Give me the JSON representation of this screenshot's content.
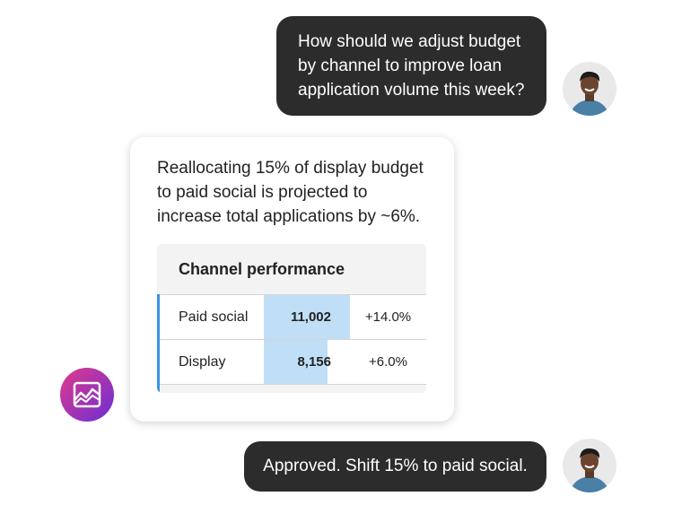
{
  "conversation": {
    "user_message_1": {
      "lines": [
        "How should we adjust budget",
        "by channel to improve loan",
        "application volume this week?"
      ]
    },
    "assistant_message": {
      "lines": [
        "Reallocating 15% of display budget",
        "to paid social is projected to",
        "increase total applications by ~6%."
      ],
      "table": {
        "title": "Channel performance",
        "rows": [
          {
            "channel": "Paid social",
            "volume": {
              "value": 11002,
              "label": "11,002"
            },
            "change": "+14.0%"
          },
          {
            "channel": "Display",
            "volume": {
              "value": 8156,
              "label": "8,156"
            },
            "change": "+6.0%"
          }
        ]
      }
    },
    "user_message_2": {
      "text": "Approved. Shift 15% to paid social."
    }
  }
}
